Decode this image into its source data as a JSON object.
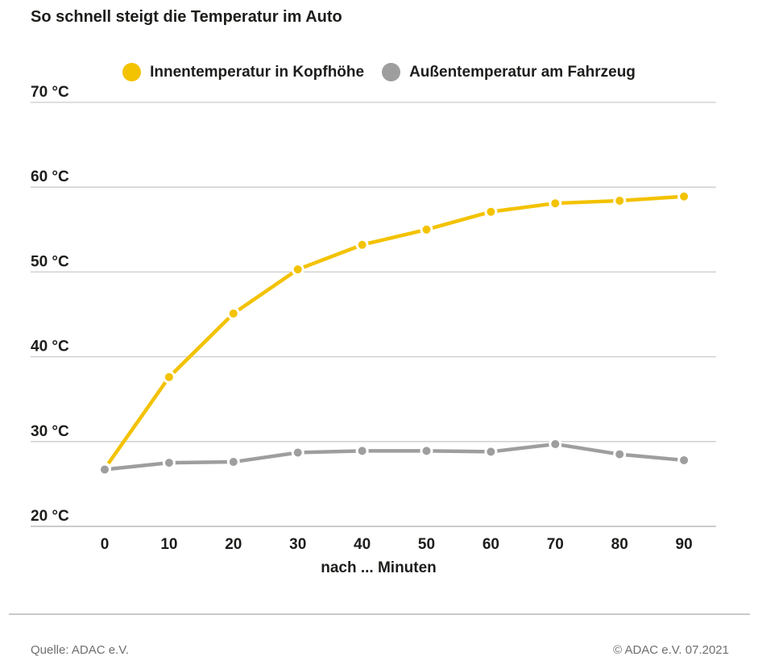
{
  "header": {
    "title": "So schnell steigt die Temperatur im Auto"
  },
  "chart_data": {
    "type": "line",
    "title": "So schnell steigt die Temperatur im Auto",
    "xlabel": "nach ... Minuten",
    "ylabel": "",
    "x": [
      0,
      10,
      20,
      30,
      40,
      50,
      60,
      70,
      80,
      90
    ],
    "xlim": [
      0,
      90
    ],
    "ylim": [
      20,
      70
    ],
    "grid": true,
    "legend_position": "top",
    "yticks": [
      {
        "value": 70,
        "label": "70 °C"
      },
      {
        "value": 60,
        "label": "60 °C"
      },
      {
        "value": 50,
        "label": "50 °C"
      },
      {
        "value": 40,
        "label": "40 °C"
      },
      {
        "value": 30,
        "label": "30 °C"
      },
      {
        "value": 20,
        "label": "20 °C"
      }
    ],
    "xticks": [
      {
        "value": 0,
        "label": "0"
      },
      {
        "value": 10,
        "label": "10"
      },
      {
        "value": 20,
        "label": "20"
      },
      {
        "value": 30,
        "label": "30"
      },
      {
        "value": 40,
        "label": "40"
      },
      {
        "value": 50,
        "label": "50"
      },
      {
        "value": 60,
        "label": "60"
      },
      {
        "value": 70,
        "label": "70"
      },
      {
        "value": 80,
        "label": "80"
      },
      {
        "value": 90,
        "label": "90"
      }
    ],
    "series": [
      {
        "name": "Innentemperatur in Kopfhöhe",
        "color": "#f3c200",
        "values": [
          26.8,
          37.6,
          45.1,
          50.3,
          53.2,
          55.0,
          57.1,
          58.1,
          58.4,
          58.9
        ]
      },
      {
        "name": "Außentemperatur am Fahrzeug",
        "color": "#9e9e9e",
        "values": [
          26.7,
          27.5,
          27.6,
          28.7,
          28.9,
          28.9,
          28.8,
          29.7,
          28.5,
          27.8
        ]
      }
    ]
  },
  "footer": {
    "source": "Quelle: ADAC e.V.",
    "copyright": "© ADAC e.V. 07.2021"
  },
  "colors": {
    "text": "#1d1d1b",
    "grid": "#cbcbcb",
    "footer_text": "#6f6f6f",
    "background": "#ffffff"
  }
}
